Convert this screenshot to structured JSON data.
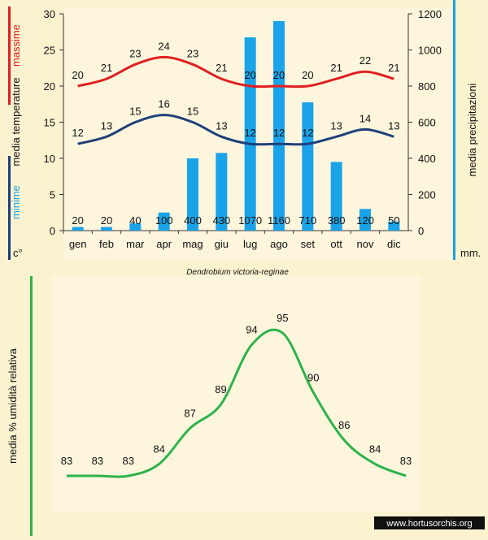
{
  "chart_data": [
    {
      "type": "bar+line",
      "title": "",
      "species": "Dendrobium victoria-reginae",
      "categories": [
        "gen",
        "feb",
        "mar",
        "apr",
        "mag",
        "giu",
        "lug",
        "ago",
        "set",
        "ott",
        "nov",
        "dic"
      ],
      "left_axis": {
        "label_max": "massime",
        "label_media": "media  temperature",
        "label_min": "minime",
        "unit": "c°",
        "range": [
          0,
          30
        ],
        "ticks": [
          0,
          5,
          10,
          15,
          20,
          25,
          30
        ]
      },
      "right_axis": {
        "label": "media  precipitazioni",
        "unit": "mm.",
        "range": [
          0,
          1200
        ],
        "ticks": [
          0,
          200,
          400,
          600,
          800,
          1000,
          1200
        ]
      },
      "series": [
        {
          "name": "massime",
          "kind": "line",
          "color": "#e02020",
          "axis": "left",
          "values": [
            20,
            21,
            23,
            24,
            23,
            21,
            20,
            20,
            20,
            21,
            22,
            21
          ]
        },
        {
          "name": "minime",
          "kind": "line",
          "color": "#1f3f7a",
          "axis": "left",
          "values": [
            12,
            13,
            15,
            16,
            15,
            13,
            12,
            12,
            12,
            13,
            14,
            13
          ]
        },
        {
          "name": "precipitazioni",
          "kind": "bar",
          "color": "#1aa3e8",
          "axis": "right",
          "values": [
            20,
            20,
            40,
            100,
            400,
            430,
            1070,
            1160,
            710,
            380,
            120,
            50
          ]
        }
      ]
    },
    {
      "type": "line",
      "ylabel": "media  %  umidità relativa",
      "categories": [
        "gen",
        "feb",
        "mar",
        "apr",
        "mag",
        "giu",
        "lug",
        "ago",
        "set",
        "ott",
        "nov",
        "dic"
      ],
      "series": [
        {
          "name": "umidità relativa",
          "color": "#2db34a",
          "values": [
            83,
            83,
            83,
            84,
            87,
            89,
            94,
            95,
            90,
            86,
            84,
            83
          ]
        }
      ]
    }
  ],
  "colors": {
    "max_bar": "#e02020",
    "min_bar": "#1f3f7a",
    "precip_bar": "#1aa3e8",
    "humidity_bar": "#2db34a",
    "panel": "#fdf6dd",
    "background": "#fbf2d0"
  },
  "watermark": "www.hortusorchis.org"
}
